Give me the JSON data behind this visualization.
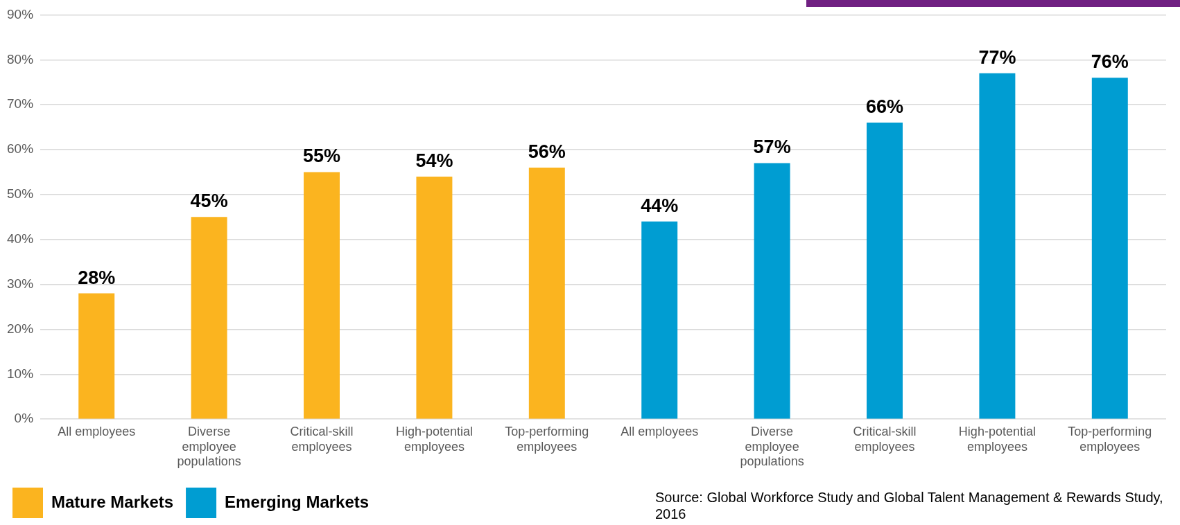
{
  "chart_data": {
    "type": "bar",
    "categories": [
      "All employees",
      "Diverse employee populations",
      "Critical-skill employees",
      "High-potential employees",
      "Top-performing employees",
      "All employees",
      "Diverse employee populations",
      "Critical-skill employees",
      "High-potential employees",
      "Top-performing employees"
    ],
    "series": [
      {
        "name": "Mature Markets",
        "color": "#fbb41f",
        "values": [
          28,
          45,
          55,
          54,
          56,
          null,
          null,
          null,
          null,
          null
        ],
        "value_labels": [
          "28%",
          "45%",
          "55%",
          "54%",
          "56%",
          null,
          null,
          null,
          null,
          null
        ]
      },
      {
        "name": "Emerging Markets",
        "color": "#009dd2",
        "values": [
          null,
          null,
          null,
          null,
          null,
          44,
          57,
          66,
          77,
          76
        ],
        "value_labels": [
          null,
          null,
          null,
          null,
          null,
          "44%",
          "57%",
          "66%",
          "77%",
          "76%"
        ]
      }
    ],
    "ylim": [
      0,
      90
    ],
    "yticks": [
      {
        "value": 0,
        "label": "0%"
      },
      {
        "value": 10,
        "label": "10%"
      },
      {
        "value": 20,
        "label": "20%"
      },
      {
        "value": 30,
        "label": "30%"
      },
      {
        "value": 40,
        "label": "40%"
      },
      {
        "value": 50,
        "label": "50%"
      },
      {
        "value": 60,
        "label": "60%"
      },
      {
        "value": 70,
        "label": "70%"
      },
      {
        "value": 80,
        "label": "80%"
      },
      {
        "value": 90,
        "label": "90%"
      }
    ],
    "grid": "y",
    "legend": "bottom left",
    "annotations": [
      "Source: Global Workforce Study and Global Talent Management & Rewards Study, 2016"
    ]
  }
}
